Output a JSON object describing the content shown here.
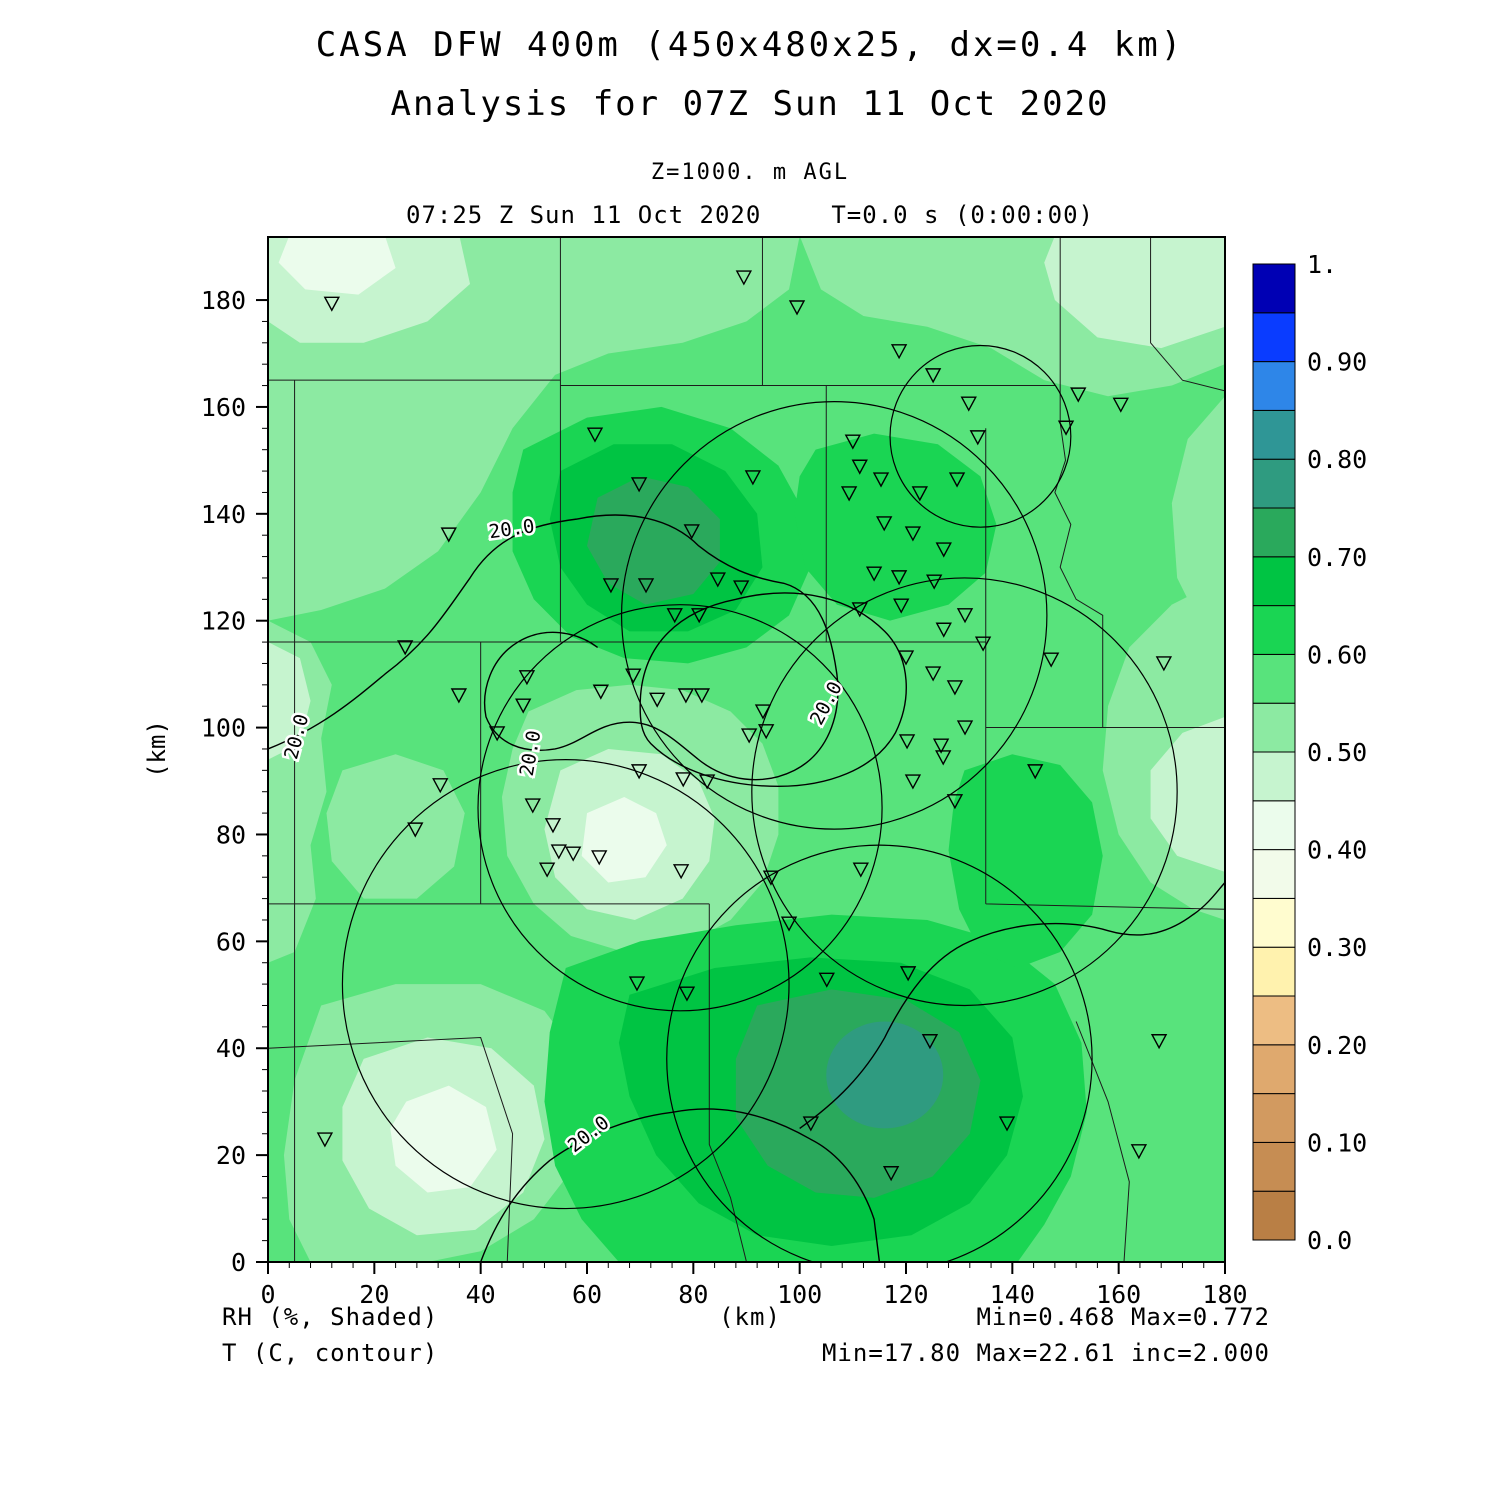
{
  "header": {
    "title": "CASA DFW 400m (450x480x25, dx=0.4 km)",
    "subtitle": "Analysis for 07Z Sun 11 Oct 2020",
    "level": "Z=1000. m AGL",
    "valid_time": "07:25 Z Sun 11 Oct 2020",
    "forecast_time": "T=0.0 s (0:00:00)"
  },
  "y_axis_label": "(km)",
  "footer": {
    "shaded_label": "RH (%, Shaded)",
    "contour_label": "T (C, contour)",
    "x_axis_unit": "(km)",
    "shaded_stats": "Min=0.468 Max=0.772",
    "contour_stats": "Min=17.80 Max=22.61 inc=2.000"
  },
  "chart_data": {
    "type": "heatmap",
    "title": "CASA DFW 400m (450x480x25, dx=0.4 km)",
    "subtitle": "Analysis for 07Z Sun 11 Oct 2020",
    "level": "Z=1000. m AGL",
    "valid_time": "07:25 Z Sun 11 Oct 2020",
    "forecast_time": "T=0.0 s (0:00:00)",
    "xlabel": "(km)",
    "ylabel": "(km)",
    "xlim": [
      0,
      180
    ],
    "ylim": [
      0,
      192
    ],
    "x_ticks": [
      0,
      20,
      40,
      60,
      80,
      100,
      120,
      140,
      160,
      180
    ],
    "y_ticks": [
      0,
      20,
      40,
      60,
      80,
      100,
      120,
      140,
      160,
      180
    ],
    "minor_tick_km": 4,
    "shaded_field": {
      "name": "RH",
      "units": "%",
      "style": "Shaded",
      "min": 0.468,
      "max": 0.772
    },
    "contour_field": {
      "name": "T",
      "units": "C",
      "style": "contour",
      "min": 17.8,
      "max": 22.61,
      "interval": 2.0,
      "labeled_value": "20.0"
    },
    "colorbar": {
      "ticks": [
        {
          "v": 1.0,
          "label": "1."
        },
        {
          "v": 0.9,
          "label": "0.90"
        },
        {
          "v": 0.8,
          "label": "0.80"
        },
        {
          "v": 0.7,
          "label": "0.70"
        },
        {
          "v": 0.6,
          "label": "0.60"
        },
        {
          "v": 0.5,
          "label": "0.50"
        },
        {
          "v": 0.4,
          "label": "0.40"
        },
        {
          "v": 0.3,
          "label": "0.30"
        },
        {
          "v": 0.2,
          "label": "0.20"
        },
        {
          "v": 0.1,
          "label": "0.10"
        },
        {
          "v": 0.0,
          "label": "0.0"
        }
      ],
      "segments": [
        {
          "from": 0.0,
          "to": 0.05,
          "color": "#b97f45"
        },
        {
          "from": 0.05,
          "to": 0.1,
          "color": "#c68d53"
        },
        {
          "from": 0.1,
          "to": 0.15,
          "color": "#d29a60"
        },
        {
          "from": 0.15,
          "to": 0.2,
          "color": "#dfa96e"
        },
        {
          "from": 0.2,
          "to": 0.25,
          "color": "#edbd83"
        },
        {
          "from": 0.25,
          "to": 0.3,
          "color": "#fff2ae"
        },
        {
          "from": 0.3,
          "to": 0.35,
          "color": "#fffccf"
        },
        {
          "from": 0.35,
          "to": 0.4,
          "color": "#f2fbea"
        },
        {
          "from": 0.4,
          "to": 0.45,
          "color": "#ebfcec"
        },
        {
          "from": 0.45,
          "to": 0.5,
          "color": "#c6f4cf"
        },
        {
          "from": 0.5,
          "to": 0.55,
          "color": "#8ceaa2"
        },
        {
          "from": 0.55,
          "to": 0.6,
          "color": "#58e37c"
        },
        {
          "from": 0.6,
          "to": 0.65,
          "color": "#1ad553"
        },
        {
          "from": 0.65,
          "to": 0.7,
          "color": "#00c443"
        },
        {
          "from": 0.7,
          "to": 0.75,
          "color": "#2aa95c"
        },
        {
          "from": 0.75,
          "to": 0.8,
          "color": "#2f9b80"
        },
        {
          "from": 0.8,
          "to": 0.85,
          "color": "#2f9696"
        },
        {
          "from": 0.85,
          "to": 0.9,
          "color": "#2e86e8"
        },
        {
          "from": 0.9,
          "to": 0.95,
          "color": "#0a3cff"
        },
        {
          "from": 0.95,
          "to": 1.0,
          "color": "#0000b4"
        }
      ]
    },
    "range_rings_km": [
      {
        "cx": 106.5,
        "cy": 121,
        "r": 40
      },
      {
        "cx": 77.5,
        "cy": 85,
        "r": 38
      },
      {
        "cx": 131,
        "cy": 88,
        "r": 40
      },
      {
        "cx": 56,
        "cy": 52,
        "r": 42
      },
      {
        "cx": 115,
        "cy": 38,
        "r": 40
      },
      {
        "cx": 134,
        "cy": 154.5,
        "r": 17
      }
    ],
    "contour_labels": [
      {
        "x": 46,
        "y": 136,
        "rot": -8,
        "text": "20.0"
      },
      {
        "x": 6.5,
        "y": 98,
        "rot": -75,
        "text": "20.0"
      },
      {
        "x": 50.5,
        "y": 95,
        "rot": -80,
        "text": "20.0"
      },
      {
        "x": 106,
        "y": 104,
        "rot": -62,
        "text": "20.0"
      },
      {
        "x": 61,
        "y": 23,
        "rot": -38,
        "text": "20.0"
      }
    ],
    "stations_km": [
      [
        12,
        179.4
      ],
      [
        89.5,
        184.3
      ],
      [
        99.5,
        178.7
      ],
      [
        118.7,
        170.5
      ],
      [
        125.1,
        166
      ],
      [
        131.8,
        160.7
      ],
      [
        152.4,
        162.4
      ],
      [
        160.4,
        160.5
      ],
      [
        150.1,
        156.2
      ],
      [
        133.5,
        154.4
      ],
      [
        61.5,
        154.9
      ],
      [
        110,
        153.6
      ],
      [
        111.3,
        148.9
      ],
      [
        109.3,
        143.9
      ],
      [
        115.3,
        146.5
      ],
      [
        122.6,
        143.9
      ],
      [
        129.6,
        146.5
      ],
      [
        69.8,
        145.6
      ],
      [
        91.2,
        146.9
      ],
      [
        79.7,
        136.8
      ],
      [
        115.9,
        138.3
      ],
      [
        121.3,
        136.4
      ],
      [
        127.1,
        133.4
      ],
      [
        34,
        136.2
      ],
      [
        114,
        128.9
      ],
      [
        118.7,
        128.2
      ],
      [
        125.3,
        127.4
      ],
      [
        64.5,
        126.7
      ],
      [
        71.1,
        126.7
      ],
      [
        84.6,
        127.8
      ],
      [
        89,
        126.3
      ],
      [
        111.3,
        122.2
      ],
      [
        119.1,
        122.9
      ],
      [
        127.1,
        118.4
      ],
      [
        131.1,
        121.1
      ],
      [
        76.5,
        121.1
      ],
      [
        81.1,
        121.1
      ],
      [
        134.5,
        115.8
      ],
      [
        120,
        113.2
      ],
      [
        147.3,
        112.8
      ],
      [
        25.8,
        115.1
      ],
      [
        168.5,
        112.1
      ],
      [
        125.1,
        110.2
      ],
      [
        48.7,
        109.5
      ],
      [
        68.7,
        109.8
      ],
      [
        129.2,
        107.6
      ],
      [
        62.6,
        106.8
      ],
      [
        73.2,
        105.3
      ],
      [
        78.6,
        106.1
      ],
      [
        81.6,
        106.1
      ],
      [
        35.9,
        106.1
      ],
      [
        48,
        104.2
      ],
      [
        93.1,
        103.1
      ],
      [
        93.7,
        99.4
      ],
      [
        90.5,
        98.6
      ],
      [
        131.1,
        100.1
      ],
      [
        120.2,
        97.5
      ],
      [
        126.6,
        96.7
      ],
      [
        43.1,
        99
      ],
      [
        127,
        94.5
      ],
      [
        69.8,
        91.9
      ],
      [
        78.1,
        90.4
      ],
      [
        82.6,
        90
      ],
      [
        121.3,
        90
      ],
      [
        144.3,
        91.9
      ],
      [
        32.4,
        89.3
      ],
      [
        129.2,
        86.3
      ],
      [
        27.7,
        81
      ],
      [
        49.8,
        85.5
      ],
      [
        53.6,
        81.8
      ],
      [
        54.7,
        76.9
      ],
      [
        57.4,
        76.5
      ],
      [
        62.3,
        75.8
      ],
      [
        52.5,
        73.5
      ],
      [
        77.7,
        73.2
      ],
      [
        94.6,
        72
      ],
      [
        111.5,
        73.5
      ],
      [
        98,
        63.4
      ],
      [
        69.4,
        52.2
      ],
      [
        78.8,
        50.3
      ],
      [
        105.1,
        52.9
      ],
      [
        120.4,
        54.1
      ],
      [
        124.5,
        41.4
      ],
      [
        167.6,
        41.4
      ],
      [
        102.1,
        26
      ],
      [
        139,
        26
      ],
      [
        117.2,
        16.7
      ],
      [
        163.8,
        20.8
      ],
      [
        10.7,
        23
      ]
    ]
  }
}
